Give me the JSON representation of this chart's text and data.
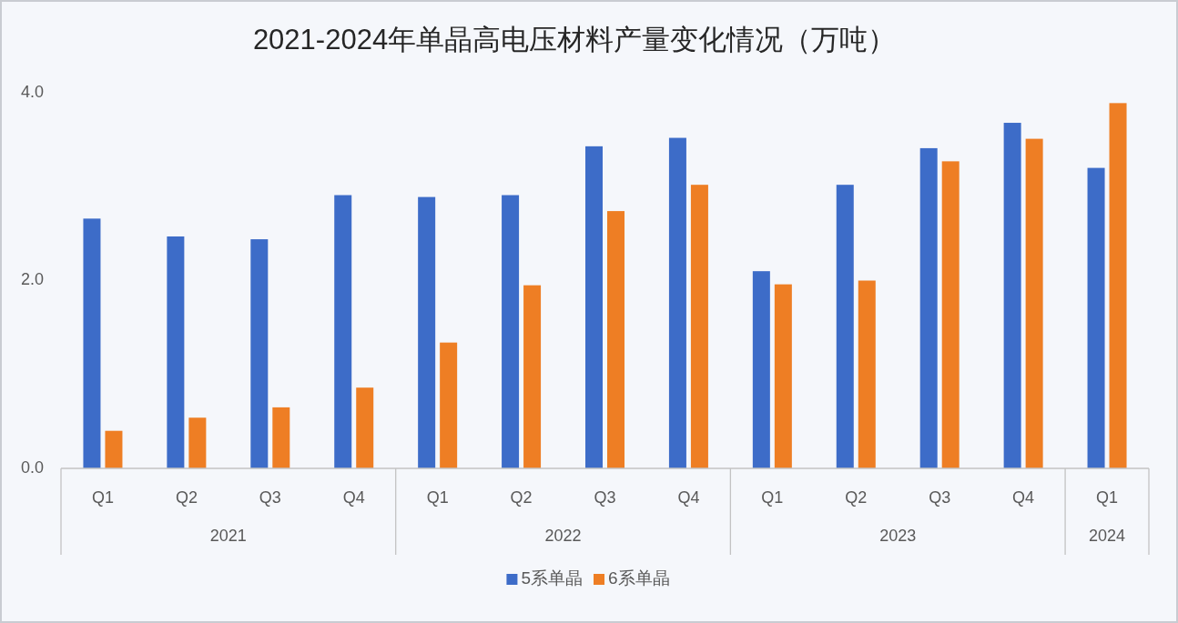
{
  "chart_data": {
    "type": "bar",
    "title": "2021-2024年单晶高电压材料产量变化情况（万吨）",
    "categories": [
      "Q1",
      "Q2",
      "Q3",
      "Q4",
      "Q1",
      "Q2",
      "Q3",
      "Q4",
      "Q1",
      "Q2",
      "Q3",
      "Q4",
      "Q1"
    ],
    "annotations": [
      "2021",
      "2022",
      "2023",
      "2024"
    ],
    "series": [
      {
        "name": "5系单晶",
        "color": "#3d6cc8",
        "values": [
          2.66,
          2.47,
          2.44,
          2.91,
          2.89,
          2.91,
          3.43,
          3.52,
          2.1,
          3.02,
          3.41,
          3.68,
          3.2
        ]
      },
      {
        "name": "6系单晶",
        "color": "#ee7e24",
        "values": [
          0.4,
          0.54,
          0.65,
          0.86,
          1.34,
          1.95,
          2.74,
          3.02,
          1.96,
          2.0,
          3.27,
          3.51,
          3.89
        ]
      }
    ],
    "ylim": [
      0,
      4
    ],
    "yticks": [
      {
        "value": 0,
        "label": "0.0"
      },
      {
        "value": 2,
        "label": "2.0"
      },
      {
        "value": 4,
        "label": "4.0"
      }
    ],
    "legend": "bottom"
  }
}
